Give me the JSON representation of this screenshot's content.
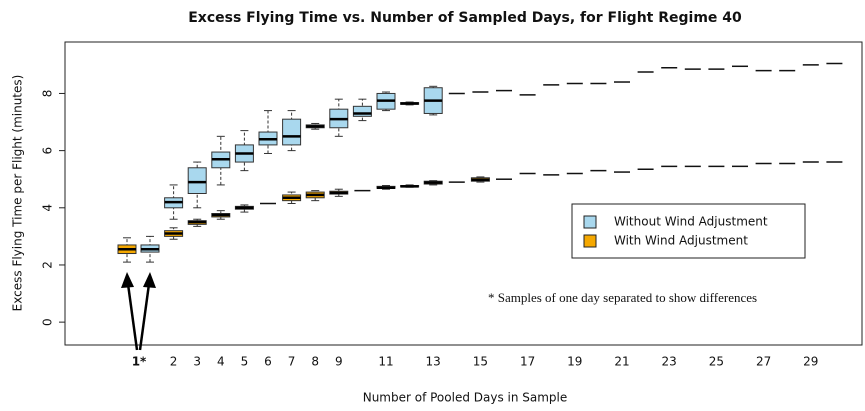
{
  "chart_data": {
    "type": "box",
    "title": "Excess Flying Time vs. Number of Sampled Days, for Flight Regime  40",
    "x_label": "Number of Pooled Days in Sample",
    "y_label": "Excess Flying Time per Flight (minutes)",
    "annotation": "* Samples of one day separated to show differences",
    "categories": [
      "1*",
      "2",
      "3",
      "4",
      "5",
      "6",
      "7",
      "8",
      "9",
      null,
      "11",
      null,
      "13",
      null,
      "15",
      null,
      "17",
      null,
      "19",
      null,
      "21",
      null,
      "23",
      null,
      "25",
      null,
      "27",
      null,
      "29",
      null
    ],
    "ylim": [
      -0.8,
      9.8
    ],
    "yticks": [
      0,
      2,
      4,
      6,
      8
    ],
    "series": [
      {
        "name": "Without Wind Adjustment",
        "color": "#a9d8ee",
        "values": [
          [
            2.1,
            2.45,
            2.55,
            2.7,
            3.0
          ],
          [
            3.6,
            4.0,
            4.2,
            4.35,
            4.8
          ],
          [
            4.0,
            4.5,
            4.9,
            5.4,
            5.6
          ],
          [
            4.8,
            5.4,
            5.7,
            5.95,
            6.5
          ],
          [
            5.3,
            5.6,
            5.9,
            6.2,
            6.7
          ],
          [
            5.9,
            6.2,
            6.4,
            6.65,
            7.4
          ],
          [
            6.0,
            6.2,
            6.5,
            7.1,
            7.4
          ],
          [
            6.75,
            6.8,
            6.85,
            6.9,
            6.95
          ],
          [
            6.5,
            6.8,
            7.1,
            7.45,
            7.8
          ],
          [
            7.05,
            7.2,
            7.3,
            7.55,
            7.8
          ],
          [
            7.4,
            7.45,
            7.75,
            8.0,
            8.05
          ],
          [
            7.6,
            7.62,
            7.65,
            7.68,
            7.7
          ],
          [
            7.25,
            7.3,
            7.75,
            8.2,
            8.25
          ],
          [
            8.0,
            8.0,
            8.0,
            8.0,
            8.0
          ],
          [
            8.05,
            8.05,
            8.05,
            8.05,
            8.05
          ],
          [
            8.1,
            8.1,
            8.1,
            8.1,
            8.1
          ],
          [
            7.95,
            7.95,
            7.95,
            7.95,
            7.95
          ],
          [
            8.3,
            8.3,
            8.3,
            8.3,
            8.3
          ],
          [
            8.35,
            8.35,
            8.35,
            8.35,
            8.35
          ],
          [
            8.35,
            8.35,
            8.35,
            8.35,
            8.35
          ],
          [
            8.4,
            8.4,
            8.4,
            8.4,
            8.4
          ],
          [
            8.75,
            8.75,
            8.75,
            8.75,
            8.75
          ],
          [
            8.9,
            8.9,
            8.9,
            8.9,
            8.9
          ],
          [
            8.85,
            8.85,
            8.85,
            8.85,
            8.85
          ],
          [
            8.85,
            8.85,
            8.85,
            8.85,
            8.85
          ],
          [
            8.95,
            8.95,
            8.95,
            8.95,
            8.95
          ],
          [
            8.8,
            8.8,
            8.8,
            8.8,
            8.8
          ],
          [
            8.8,
            8.8,
            8.8,
            8.8,
            8.8
          ],
          [
            9.0,
            9.0,
            9.0,
            9.0,
            9.0
          ],
          [
            9.05,
            9.05,
            9.05,
            9.05,
            9.05
          ]
        ]
      },
      {
        "name": "With Wind Adjustment",
        "color": "#f5a800",
        "values": [
          [
            2.1,
            2.4,
            2.55,
            2.7,
            2.95
          ],
          [
            2.9,
            3.0,
            3.1,
            3.2,
            3.3
          ],
          [
            3.35,
            3.42,
            3.5,
            3.55,
            3.6
          ],
          [
            3.6,
            3.68,
            3.75,
            3.8,
            3.9
          ],
          [
            3.85,
            3.95,
            4.0,
            4.05,
            4.1
          ],
          [
            4.15,
            4.15,
            4.15,
            4.15,
            4.15
          ],
          [
            4.15,
            4.25,
            4.35,
            4.45,
            4.55
          ],
          [
            4.25,
            4.35,
            4.45,
            4.55,
            4.6
          ],
          [
            4.4,
            4.48,
            4.52,
            4.58,
            4.65
          ],
          [
            4.6,
            4.6,
            4.6,
            4.6,
            4.6
          ],
          [
            4.65,
            4.68,
            4.7,
            4.75,
            4.78
          ],
          [
            4.72,
            4.73,
            4.75,
            4.78,
            4.8
          ],
          [
            4.8,
            4.83,
            4.88,
            4.93,
            4.95
          ],
          [
            4.9,
            4.9,
            4.9,
            4.9,
            4.9
          ],
          [
            4.9,
            4.93,
            4.98,
            5.05,
            5.08
          ],
          [
            5.0,
            5.0,
            5.0,
            5.0,
            5.0
          ],
          [
            5.2,
            5.2,
            5.2,
            5.2,
            5.2
          ],
          [
            5.15,
            5.15,
            5.15,
            5.15,
            5.15
          ],
          [
            5.2,
            5.2,
            5.2,
            5.2,
            5.2
          ],
          [
            5.3,
            5.3,
            5.3,
            5.3,
            5.3
          ],
          [
            5.25,
            5.25,
            5.25,
            5.25,
            5.25
          ],
          [
            5.35,
            5.35,
            5.35,
            5.35,
            5.35
          ],
          [
            5.45,
            5.45,
            5.45,
            5.45,
            5.45
          ],
          [
            5.45,
            5.45,
            5.45,
            5.45,
            5.45
          ],
          [
            5.45,
            5.45,
            5.45,
            5.45,
            5.45
          ],
          [
            5.45,
            5.45,
            5.45,
            5.45,
            5.45
          ],
          [
            5.55,
            5.55,
            5.55,
            5.55,
            5.55
          ],
          [
            5.55,
            5.55,
            5.55,
            5.55,
            5.55
          ],
          [
            5.6,
            5.6,
            5.6,
            5.6,
            5.6
          ],
          [
            5.6,
            5.6,
            5.6,
            5.6,
            5.6
          ]
        ]
      }
    ]
  }
}
